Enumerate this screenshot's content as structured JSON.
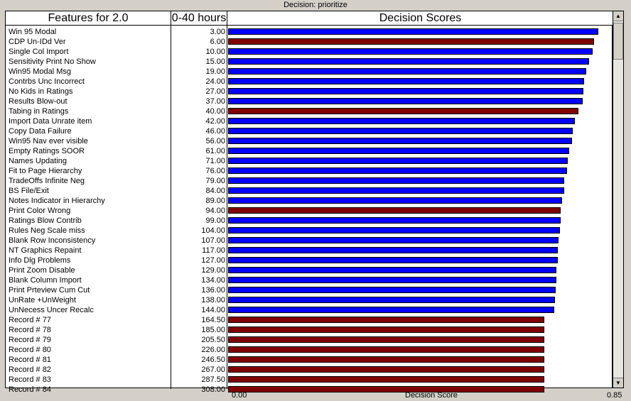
{
  "window": {
    "title": "Decision: prioritize"
  },
  "columns": {
    "features": "Features for 2.0",
    "hours": "0-40 hours",
    "scores": "Decision Scores"
  },
  "colors": {
    "bar_blue": "#0000ff",
    "bar_red": "#800000"
  },
  "chart_data": {
    "type": "bar",
    "orientation": "horizontal",
    "xlabel": "Decision Score",
    "xlim": [
      0,
      0.85
    ],
    "x_tick_labels": [
      "0.00",
      "0.85"
    ],
    "categories": [
      "Win 95 Modal",
      "CDP Un-IDd Ver",
      "Single Col Import",
      "Sensitivity Print No Show",
      "Win95 Modal Msg",
      "Contrbs Unc Incorrect",
      "No Kids in Ratings",
      "Results Blow-out",
      "Tabing in Ratings",
      "Import Data Unrate item",
      "Copy Data Failure",
      "Win95 Nav ever visible",
      "Empty Ratings SOOR",
      "Names Updating",
      "Fit to Page Hierarchy",
      "TradeOffs Infinite Neg",
      "BS File/Exit",
      "Notes Indicator in Hierarchy",
      "Print Color Wrong",
      "Ratings Blow Contrib",
      "Rules Neg Scale miss",
      "Blank Row Inconsistency",
      "NT Graphics Repaint",
      "Info Dlg Problems",
      "Print Zoom Disable",
      "Blank Column Import",
      "Print Prteview Cum Cut",
      "UnRate +UnWeight",
      "UnNecess Uncer Recalc",
      "Record # 77",
      "Record # 78",
      "Record # 79",
      "Record # 80",
      "Record # 81",
      "Record # 82",
      "Record # 83",
      "Record # 84"
    ],
    "hours": [
      "3.00",
      "6.00",
      "10.00",
      "15.00",
      "19.00",
      "24.00",
      "27.00",
      "37.00",
      "40.00",
      "42.00",
      "46.00",
      "56.00",
      "61.00",
      "71.00",
      "76.00",
      "79.00",
      "84.00",
      "89.00",
      "94.00",
      "99.00",
      "104.00",
      "107.00",
      "117.00",
      "127.00",
      "129.00",
      "134.00",
      "136.00",
      "138.00",
      "144.00",
      "164.50",
      "185.00",
      "205.50",
      "226.00",
      "246.50",
      "267.00",
      "287.50",
      "308.00"
    ],
    "values": [
      0.82,
      0.81,
      0.808,
      0.8,
      0.794,
      0.788,
      0.787,
      0.785,
      0.776,
      0.768,
      0.764,
      0.762,
      0.755,
      0.753,
      0.751,
      0.745,
      0.744,
      0.74,
      0.736,
      0.736,
      0.735,
      0.732,
      0.731,
      0.731,
      0.728,
      0.727,
      0.726,
      0.724,
      0.722,
      0.701,
      0.701,
      0.701,
      0.701,
      0.701,
      0.701,
      0.701,
      0.701
    ],
    "bar_colors": [
      "blue",
      "red",
      "blue",
      "blue",
      "blue",
      "blue",
      "blue",
      "blue",
      "red",
      "blue",
      "blue",
      "blue",
      "blue",
      "blue",
      "blue",
      "blue",
      "blue",
      "blue",
      "red",
      "blue",
      "blue",
      "blue",
      "blue",
      "blue",
      "blue",
      "blue",
      "blue",
      "blue",
      "blue",
      "red",
      "red",
      "red",
      "red",
      "red",
      "red",
      "red",
      "red"
    ]
  }
}
